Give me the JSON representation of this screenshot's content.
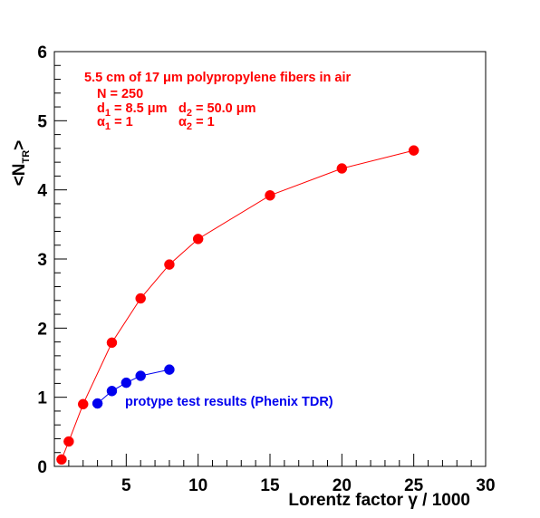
{
  "chart_data": {
    "type": "scatter",
    "xlabel": "Lorentz factor γ / 1000",
    "ylabel": "<N_TR>",
    "xlim": [
      0,
      30
    ],
    "ylim": [
      0,
      6
    ],
    "xticks": [
      5,
      10,
      15,
      20,
      25,
      30
    ],
    "yticks": [
      0,
      1,
      2,
      3,
      4,
      5,
      6
    ],
    "grid": false,
    "series": [
      {
        "name": "5.5 cm of 17 μm polypropylene fibers in air",
        "color": "#ff0000",
        "line": true,
        "x": [
          0.5,
          1,
          2,
          4,
          6,
          8,
          10,
          15,
          20,
          25
        ],
        "y": [
          0.1,
          0.36,
          0.9,
          1.79,
          2.43,
          2.92,
          3.29,
          3.92,
          4.31,
          4.57
        ]
      },
      {
        "name": "protype test results (Phenix TDR)",
        "color": "#0000ee",
        "line": true,
        "x": [
          3,
          4,
          5,
          6,
          8
        ],
        "y": [
          0.91,
          1.09,
          1.21,
          1.31,
          1.4
        ]
      }
    ],
    "annotations": {
      "title_line": "5.5 cm of 17 μm polypropylene fibers in air",
      "n_line": "N = 250",
      "d_line_1": "d",
      "d_line_1_sub": "1",
      "d_line_1_val": " = 8.5 μm",
      "d_line_2": "d",
      "d_line_2_sub": "2",
      "d_line_2_val": " = 50.0 μm",
      "alpha_line_1": "α",
      "alpha_line_1_sub": "1",
      "alpha_line_1_val": " = 1",
      "alpha_line_2": "α",
      "alpha_line_2_sub": "2",
      "alpha_line_2_val": " = 1",
      "blue_label": "protype test results (Phenix TDR)"
    },
    "annotation_colors": {
      "red": "#ff0000",
      "blue": "#0000ee"
    }
  }
}
